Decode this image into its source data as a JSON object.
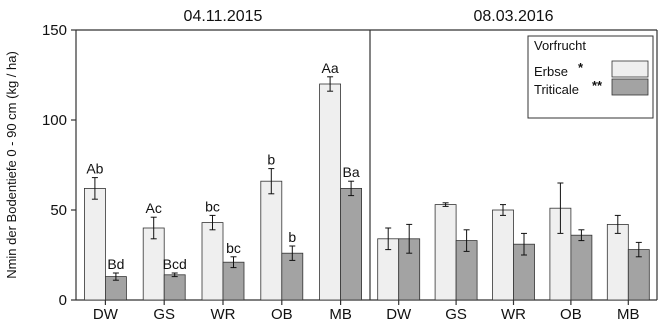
{
  "chart_data": {
    "type": "bar",
    "ylabel": "Nmin der Bodentiefe 0 - 90 cm (kg / ha)",
    "xlabel": "",
    "ylim": [
      0,
      150
    ],
    "yticks": [
      0,
      50,
      100,
      150
    ],
    "ytick_labels": [
      "0",
      "50",
      "100",
      "150"
    ],
    "categories": [
      "DW",
      "GS",
      "WR",
      "OB",
      "MB"
    ],
    "legend": {
      "title": "Vorfrucht",
      "placement": "top-right"
    },
    "colors": {
      "Erbse": "#efefef",
      "Triticale": "#a3a3a3",
      "stroke": "#333333"
    },
    "panels": [
      {
        "title": "04.11.2015",
        "series": [
          {
            "name": "Erbse",
            "marker": "*",
            "values": [
              62,
              40,
              43,
              66,
              120
            ],
            "errors": [
              6,
              6,
              4,
              7,
              4
            ],
            "labels": [
              "Ab",
              "Ac",
              "bc",
              "b",
              "Aa"
            ]
          },
          {
            "name": "Triticale",
            "marker": "**",
            "values": [
              13,
              14,
              21,
              26,
              62
            ],
            "errors": [
              2,
              1,
              3,
              4,
              4
            ],
            "labels": [
              "Bd",
              "Bcd",
              "bc",
              "b",
              "Ba"
            ]
          }
        ]
      },
      {
        "title": "08.03.2016",
        "series": [
          {
            "name": "Erbse",
            "values": [
              34,
              53,
              50,
              51,
              42
            ],
            "errors": [
              6,
              1,
              3,
              14,
              5
            ],
            "labels": [
              "",
              "",
              "",
              "",
              ""
            ]
          },
          {
            "name": "Triticale",
            "values": [
              34,
              33,
              31,
              36,
              28
            ],
            "errors": [
              8,
              6,
              6,
              3,
              4
            ],
            "labels": [
              "",
              "",
              "",
              "",
              ""
            ]
          }
        ]
      }
    ]
  }
}
